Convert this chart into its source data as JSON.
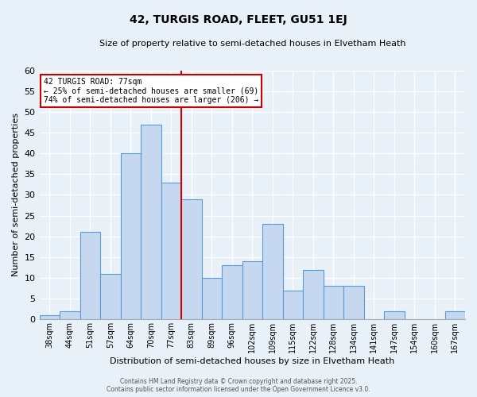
{
  "title": "42, TURGIS ROAD, FLEET, GU51 1EJ",
  "subtitle": "Size of property relative to semi-detached houses in Elvetham Heath",
  "xlabel": "Distribution of semi-detached houses by size in Elvetham Heath",
  "ylabel": "Number of semi-detached properties",
  "bin_labels": [
    "38sqm",
    "44sqm",
    "51sqm",
    "57sqm",
    "64sqm",
    "70sqm",
    "77sqm",
    "83sqm",
    "89sqm",
    "96sqm",
    "102sqm",
    "109sqm",
    "115sqm",
    "122sqm",
    "128sqm",
    "134sqm",
    "141sqm",
    "147sqm",
    "154sqm",
    "160sqm",
    "167sqm"
  ],
  "values": [
    1,
    2,
    21,
    11,
    40,
    47,
    33,
    29,
    10,
    13,
    14,
    23,
    7,
    12,
    8,
    8,
    0,
    2,
    0,
    0,
    2
  ],
  "bar_color": "#c5d8f0",
  "bar_edge_color": "#5b9bd5",
  "background_color": "#e8f0f8",
  "grid_color": "#ffffff",
  "ref_line_index": 6,
  "ref_line_color": "#cc0000",
  "annotation_title": "42 TURGIS ROAD: 77sqm",
  "annotation_line1": "← 25% of semi-detached houses are smaller (69)",
  "annotation_line2": "74% of semi-detached houses are larger (206) →",
  "annotation_box_color": "#cc0000",
  "ylim": [
    0,
    60
  ],
  "yticks": [
    0,
    5,
    10,
    15,
    20,
    25,
    30,
    35,
    40,
    45,
    50,
    55,
    60
  ],
  "footer1": "Contains HM Land Registry data © Crown copyright and database right 2025.",
  "footer2": "Contains public sector information licensed under the Open Government Licence v3.0."
}
